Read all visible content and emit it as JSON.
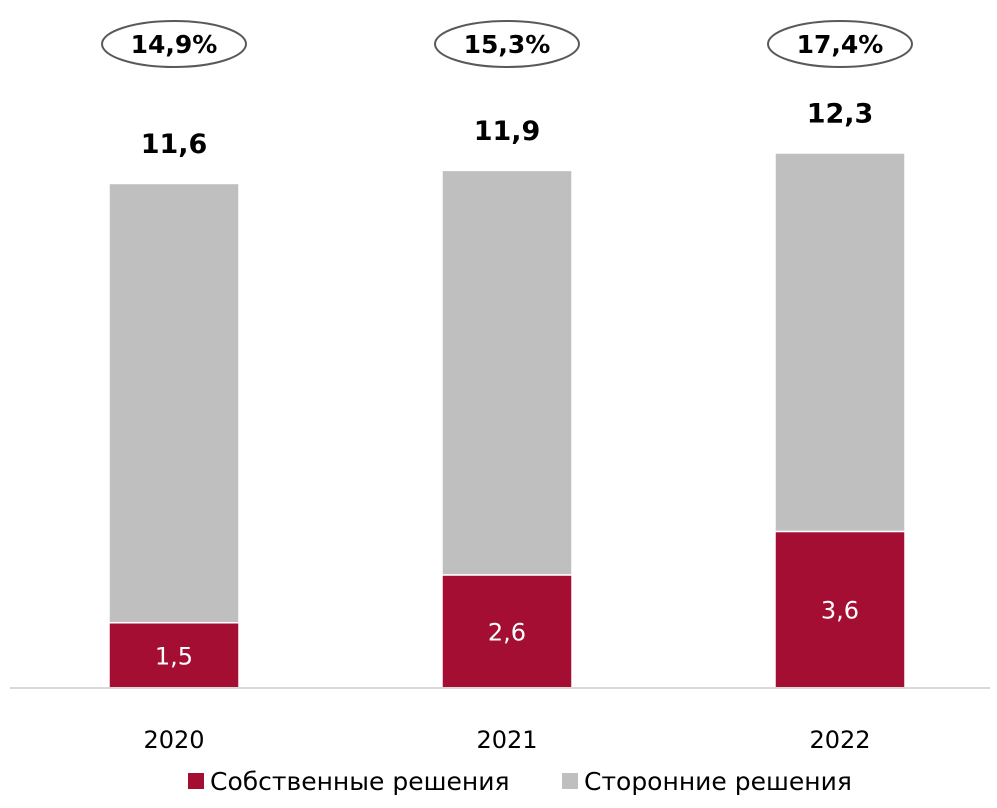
{
  "chart_data": {
    "type": "bar",
    "stacked": true,
    "categories": [
      "2020",
      "2021",
      "2022"
    ],
    "series": [
      {
        "name": "Собственные решения",
        "color": "#a50e33",
        "values": [
          1.5,
          2.6,
          3.6
        ],
        "value_labels": [
          "1,5",
          "2,6",
          "3,6"
        ]
      },
      {
        "name": "Сторонние решения",
        "color": "#bfbfbf",
        "values": [
          10.1,
          9.3,
          8.7
        ]
      }
    ],
    "totals": [
      11.6,
      11.9,
      12.3
    ],
    "total_labels": [
      "11,6",
      "11,9",
      "12,3"
    ],
    "shares": [
      14.9,
      15.3,
      17.4
    ],
    "share_labels": [
      "14,9%",
      "15,3%",
      "17,4%"
    ]
  }
}
